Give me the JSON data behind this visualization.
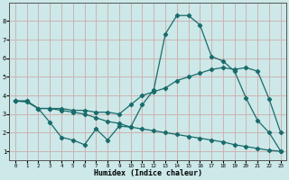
{
  "xlabel": "Humidex (Indice chaleur)",
  "xlim": [
    -0.5,
    23.5
  ],
  "ylim": [
    0.5,
    9.0
  ],
  "xticks": [
    0,
    1,
    2,
    3,
    4,
    5,
    6,
    7,
    8,
    9,
    10,
    11,
    12,
    13,
    14,
    15,
    16,
    17,
    18,
    19,
    20,
    21,
    22,
    23
  ],
  "yticks": [
    1,
    2,
    3,
    4,
    5,
    6,
    7,
    8
  ],
  "bg_color": "#cce8e8",
  "teal_grid_color": "#a0c8c8",
  "pink_grid_color": "#dda8a8",
  "line_color": "#1a6b6b",
  "line1_x": [
    0,
    1,
    2,
    3,
    4,
    5,
    6,
    7,
    8,
    9,
    10,
    11,
    12,
    13,
    14,
    15,
    16,
    17,
    18,
    19,
    20,
    21,
    22,
    23
  ],
  "line1_y": [
    3.7,
    3.7,
    3.3,
    3.3,
    3.3,
    3.2,
    3.2,
    3.1,
    3.1,
    3.0,
    3.5,
    4.0,
    4.2,
    4.4,
    4.8,
    5.0,
    5.2,
    5.4,
    5.5,
    5.4,
    5.5,
    5.3,
    3.8,
    2.0
  ],
  "line2_x": [
    0,
    1,
    2,
    3,
    4,
    5,
    6,
    7,
    8,
    9,
    10,
    11,
    12,
    13,
    14,
    15,
    16,
    17,
    18,
    19,
    20,
    21,
    22,
    23
  ],
  "line2_y": [
    3.7,
    3.7,
    3.3,
    2.55,
    1.75,
    1.6,
    1.35,
    2.2,
    1.6,
    2.35,
    2.3,
    3.5,
    4.3,
    7.3,
    8.3,
    8.3,
    7.8,
    6.1,
    5.85,
    5.3,
    3.85,
    2.65,
    2.0,
    1.0
  ],
  "line3_x": [
    0,
    1,
    2,
    3,
    4,
    5,
    6,
    7,
    8,
    9,
    10,
    11,
    12,
    13,
    14,
    15,
    16,
    17,
    18,
    19,
    20,
    21,
    22,
    23
  ],
  "line3_y": [
    3.7,
    3.65,
    3.3,
    3.3,
    3.2,
    3.1,
    3.0,
    2.8,
    2.6,
    2.5,
    2.3,
    2.2,
    2.1,
    2.0,
    1.9,
    1.8,
    1.7,
    1.6,
    1.5,
    1.35,
    1.25,
    1.15,
    1.05,
    1.0
  ]
}
